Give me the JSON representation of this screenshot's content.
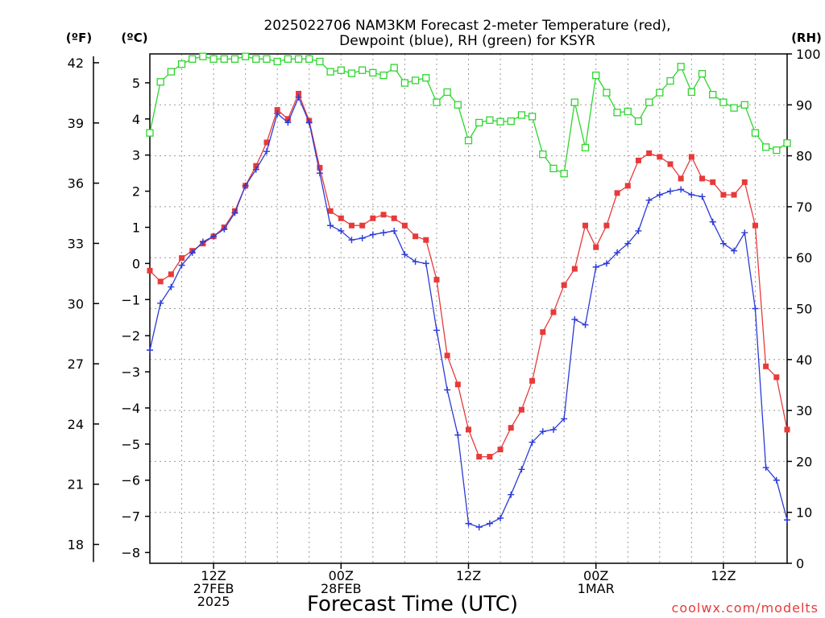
{
  "chart_data": {
    "type": "line",
    "title": [
      "2025022706 NAM3KM Forecast 2-meter Temperature (red),",
      "Dewpoint (blue), RH (green) for KSYR"
    ],
    "xlabel": "Forecast Time (UTC)",
    "credit": "coolwx.com/modelts",
    "units": {
      "f": "(ºF)",
      "c": "(ºC)",
      "rh": "(RH)"
    },
    "x_ticks": [
      {
        "hour": 6,
        "lines": [
          "12Z",
          "27FEB",
          "2025"
        ]
      },
      {
        "hour": 18,
        "lines": [
          "00Z",
          "28FEB"
        ]
      },
      {
        "hour": 30,
        "lines": [
          "12Z"
        ]
      },
      {
        "hour": 42,
        "lines": [
          "00Z",
          "1MAR"
        ]
      },
      {
        "hour": 54,
        "lines": [
          "12Z"
        ]
      }
    ],
    "x_range": [
      0,
      60
    ],
    "y_left_c": {
      "range": [
        -8.3,
        5.8
      ],
      "ticks": [
        5,
        4,
        3,
        2,
        1,
        0,
        -1,
        -2,
        -3,
        -4,
        -5,
        -6,
        -7,
        -8
      ]
    },
    "y_left_f": {
      "ticks": [
        42,
        39,
        36,
        33,
        30,
        27,
        24,
        21,
        18
      ]
    },
    "y_right_rh": {
      "range": [
        0,
        100
      ],
      "ticks": [
        100,
        90,
        80,
        70,
        60,
        50,
        40,
        30,
        20,
        10,
        0
      ]
    },
    "series": [
      {
        "name": "Temperature",
        "color": "#e83a3a",
        "marker": "square-filled",
        "axis": "c",
        "values": [
          -0.2,
          -0.5,
          -0.3,
          0.15,
          0.35,
          0.55,
          0.75,
          1.0,
          1.45,
          2.15,
          2.7,
          3.35,
          4.25,
          4.0,
          4.7,
          3.95,
          2.65,
          1.45,
          1.25,
          1.05,
          1.05,
          1.25,
          1.35,
          1.25,
          1.05,
          0.75,
          0.65,
          -0.45,
          -2.55,
          -3.35,
          -4.6,
          -5.35,
          -5.35,
          -5.15,
          -4.55,
          -4.05,
          -3.25,
          -1.9,
          -1.35,
          -0.6,
          -0.15,
          1.05,
          0.45,
          1.05,
          1.95,
          2.15,
          2.85,
          3.05,
          2.95,
          2.75,
          2.35,
          2.95,
          2.35,
          2.25,
          1.9,
          1.9,
          2.25,
          1.05,
          -2.85,
          -3.15,
          -4.6
        ]
      },
      {
        "name": "Dewpoint",
        "color": "#2b3ad6",
        "marker": "plus",
        "axis": "c",
        "values": [
          -2.4,
          -1.1,
          -0.65,
          -0.05,
          0.3,
          0.6,
          0.75,
          0.95,
          1.4,
          2.15,
          2.6,
          3.1,
          4.15,
          3.9,
          4.6,
          3.9,
          2.5,
          1.05,
          0.9,
          0.65,
          0.7,
          0.8,
          0.85,
          0.9,
          0.25,
          0.05,
          0.0,
          -1.85,
          -3.5,
          -4.75,
          -7.2,
          -7.3,
          -7.2,
          -7.05,
          -6.4,
          -5.7,
          -4.95,
          -4.65,
          -4.6,
          -4.3,
          -1.55,
          -1.7,
          -0.1,
          0.0,
          0.3,
          0.55,
          0.9,
          1.75,
          1.9,
          2.0,
          2.05,
          1.9,
          1.85,
          1.15,
          0.55,
          0.35,
          0.85,
          -1.25,
          -5.65,
          -6.0,
          -7.1
        ]
      },
      {
        "name": "RH",
        "color": "#2ed62e",
        "marker": "square-open",
        "axis": "rh",
        "values": [
          84.5,
          94.5,
          96.5,
          98.0,
          99.0,
          99.5,
          99.0,
          99.0,
          99.0,
          99.5,
          99.0,
          99.0,
          98.5,
          99.0,
          99.0,
          99.0,
          98.5,
          96.5,
          96.8,
          96.2,
          96.8,
          96.3,
          95.8,
          97.3,
          94.3,
          94.8,
          95.3,
          90.5,
          92.5,
          90.0,
          83.0,
          86.5,
          87.0,
          86.7,
          86.8,
          88.0,
          87.7,
          80.3,
          77.5,
          76.5,
          90.5,
          81.6,
          95.8,
          92.4,
          88.5,
          88.7,
          86.8,
          90.5,
          92.4,
          94.7,
          97.5,
          92.5,
          96.1,
          92.0,
          90.5,
          89.4,
          90.0,
          84.5,
          81.7,
          81.1,
          82.5
        ]
      }
    ]
  }
}
